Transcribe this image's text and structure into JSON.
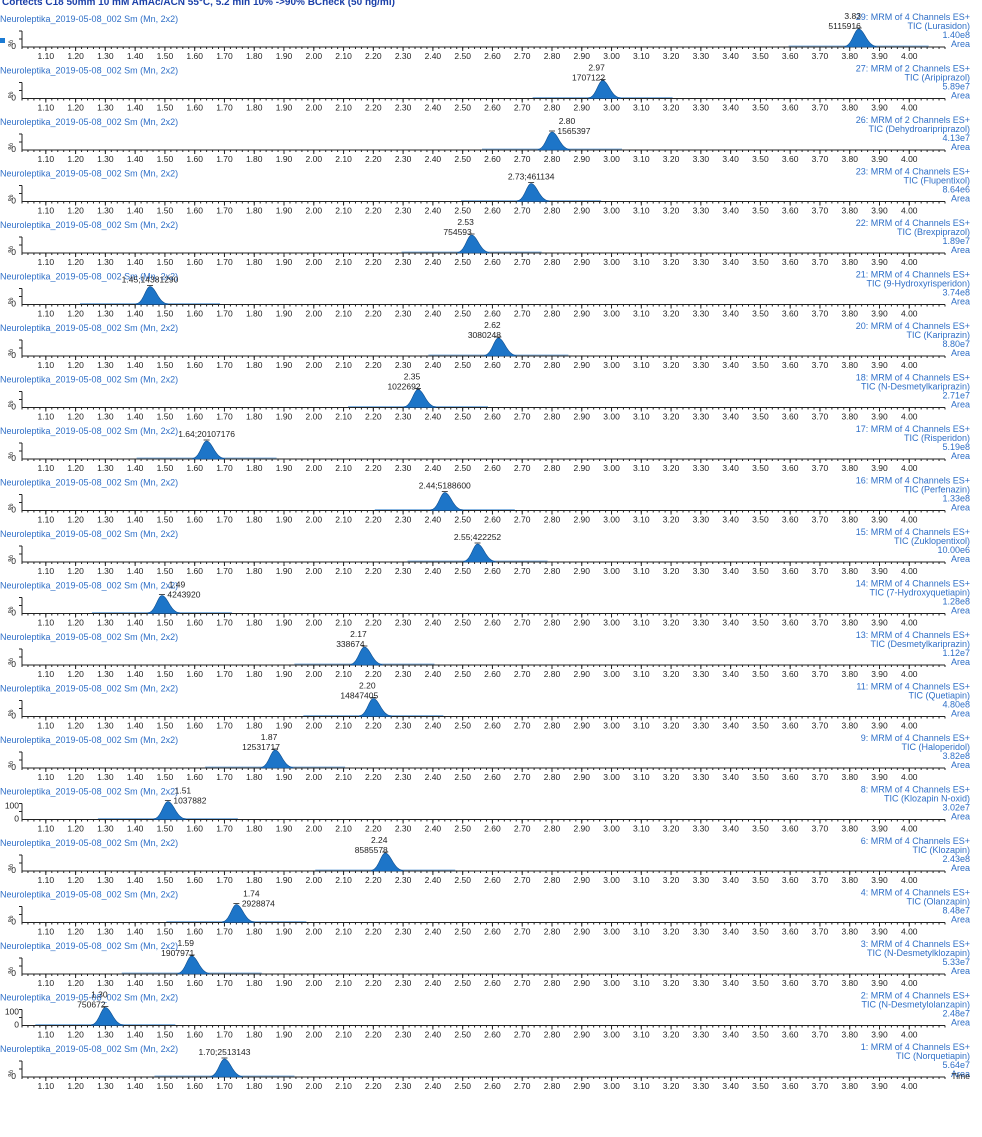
{
  "title": "Cortects C18 50mm 10 mM AmAc/ACN 55°C, 5.2 min 10% ->90% BCheck (50 ng/ml)",
  "colors": {
    "accent": "#2f6fc7",
    "peak": "#1d75c8",
    "axis": "#222222"
  },
  "chart_data": {
    "type": "line",
    "xlabel": "Time",
    "xlim": [
      1.02,
      4.12
    ],
    "x_ticks": [
      "1.10",
      "1.20",
      "1.30",
      "1.40",
      "1.50",
      "1.60",
      "1.70",
      "1.80",
      "1.90",
      "2.00",
      "2.10",
      "2.20",
      "2.30",
      "2.40",
      "2.50",
      "2.60",
      "2.70",
      "2.80",
      "2.90",
      "3.00",
      "3.10",
      "3.20",
      "3.30",
      "3.40",
      "3.50",
      "3.60",
      "3.70",
      "3.80",
      "3.90",
      "4.00"
    ],
    "series": [
      {
        "name": "Neuroleptika_2019-05-08_002 Sm (Mn, 2x2)",
        "channel": "29: MRM of 4 Channels ES+",
        "compound": "TIC (Lurasidon)",
        "intensity": "1.40e8",
        "area_label": "Area",
        "y_label": "%",
        "y_ticks": [
          "0"
        ],
        "peak_rt": 3.83,
        "peak_rt_label": "3.83",
        "peak_area": "5115916",
        "label_layout": "stacked"
      },
      {
        "name": "Neuroleptika_2019-05-08_002 Sm (Mn, 2x2)",
        "channel": "27: MRM of 2 Channels ES+",
        "compound": "TIC (Aripiprazol)",
        "intensity": "5.89e7",
        "area_label": "Area",
        "y_label": "%",
        "y_ticks": [
          "0"
        ],
        "peak_rt": 2.97,
        "peak_rt_label": "2.97",
        "peak_area": "1707122",
        "label_layout": "stacked"
      },
      {
        "name": "Neuroleptika_2019-05-08_002 Sm (Mn, 2x2)",
        "channel": "26: MRM of 2 Channels ES+",
        "compound": "TIC (Dehydroaripriprazol)",
        "intensity": "4.13e7",
        "area_label": "Area",
        "y_label": "%",
        "y_ticks": [
          "0"
        ],
        "peak_rt": 2.8,
        "peak_rt_label": "2.80",
        "peak_area": "1565397",
        "label_layout": "stacked-right"
      },
      {
        "name": "Neuroleptika_2019-05-08_002 Sm (Mn, 2x2)",
        "channel": "23: MRM of 4 Channels ES+",
        "compound": "TIC (Flupentixol)",
        "intensity": "8.64e6",
        "area_label": "Area",
        "y_label": "%",
        "y_ticks": [
          "0"
        ],
        "peak_rt": 2.73,
        "peak_rt_label": "2.73;461134",
        "peak_area": "",
        "label_layout": "inline"
      },
      {
        "name": "Neuroleptika_2019-05-08_002 Sm (Mn, 2x2)",
        "channel": "22: MRM of 4 Channels ES+",
        "compound": "TIC (Brexpiprazol)",
        "intensity": "1.89e7",
        "area_label": "Area",
        "y_label": "%",
        "y_ticks": [
          "0"
        ],
        "peak_rt": 2.53,
        "peak_rt_label": "2.53",
        "peak_area": "754593",
        "label_layout": "stacked"
      },
      {
        "name": "Neuroleptika_2019-05-08_002 Sm (Mn, 2x2)",
        "channel": "21: MRM of 4 Channels ES+",
        "compound": "TIC (9-Hydroxyrisperidon)",
        "intensity": "3.74e8",
        "area_label": "Area",
        "y_label": "%",
        "y_ticks": [
          "0"
        ],
        "peak_rt": 1.45,
        "peak_rt_label": "1.45;14381290",
        "peak_area": "",
        "label_layout": "inline"
      },
      {
        "name": "Neuroleptika_2019-05-08_002 Sm (Mn, 2x2)",
        "channel": "20: MRM of 4 Channels ES+",
        "compound": "TIC (Kariprazin)",
        "intensity": "8.80e7",
        "area_label": "Area",
        "y_label": "%",
        "y_ticks": [
          "0"
        ],
        "peak_rt": 2.62,
        "peak_rt_label": "2.62",
        "peak_area": "3080248",
        "label_layout": "stacked"
      },
      {
        "name": "Neuroleptika_2019-05-08_002 Sm (Mn, 2x2)",
        "channel": "18: MRM of 4 Channels ES+",
        "compound": "TIC (N-Desmetylkariprazin)",
        "intensity": "2.71e7",
        "area_label": "Area",
        "y_label": "%",
        "y_ticks": [
          "0"
        ],
        "peak_rt": 2.35,
        "peak_rt_label": "2.35",
        "peak_area": "1022692",
        "label_layout": "stacked"
      },
      {
        "name": "Neuroleptika_2019-05-08_002 Sm (Mn, 2x2)",
        "channel": "17: MRM of 4 Channels ES+",
        "compound": "TIC (Risperidon)",
        "intensity": "5.19e8",
        "area_label": "Area",
        "y_label": "%",
        "y_ticks": [
          "0"
        ],
        "peak_rt": 1.64,
        "peak_rt_label": "1.64;20107176",
        "peak_area": "",
        "label_layout": "inline"
      },
      {
        "name": "Neuroleptika_2019-05-08_002 Sm (Mn, 2x2)",
        "channel": "16: MRM of 4 Channels ES+",
        "compound": "TIC (Perfenazin)",
        "intensity": "1.33e8",
        "area_label": "Area",
        "y_label": "%",
        "y_ticks": [
          "0"
        ],
        "peak_rt": 2.44,
        "peak_rt_label": "2.44;5188600",
        "peak_area": "",
        "label_layout": "inline"
      },
      {
        "name": "Neuroleptika_2019-05-08_002 Sm (Mn, 2x2)",
        "channel": "15: MRM of 4 Channels ES+",
        "compound": "TIC (Zuklopentixol)",
        "intensity": "10.00e6",
        "area_label": "Area",
        "y_label": "%",
        "y_ticks": [
          "0"
        ],
        "peak_rt": 2.55,
        "peak_rt_label": "2.55;422252",
        "peak_area": "",
        "label_layout": "inline"
      },
      {
        "name": "Neuroleptika_2019-05-08_002 Sm (Mn, 2x2)",
        "channel": "14: MRM of 4 Channels ES+",
        "compound": "TIC (7-Hydroxyquetiapin)",
        "intensity": "1.28e8",
        "area_label": "Area",
        "y_label": "%",
        "y_ticks": [
          "0"
        ],
        "peak_rt": 1.49,
        "peak_rt_label": "1.49",
        "peak_area": "4243920",
        "label_layout": "stacked-right"
      },
      {
        "name": "Neuroleptika_2019-05-08_002 Sm (Mn, 2x2)",
        "channel": "13: MRM of 4 Channels ES+",
        "compound": "TIC (Desmetylkariprazin)",
        "intensity": "1.12e7",
        "area_label": "Area",
        "y_label": "%",
        "y_ticks": [
          "0"
        ],
        "peak_rt": 2.17,
        "peak_rt_label": "2.17",
        "peak_area": "338674",
        "label_layout": "stacked"
      },
      {
        "name": "Neuroleptika_2019-05-08_002 Sm (Mn, 2x2)",
        "channel": "11: MRM of 4 Channels ES+",
        "compound": "TIC (Quetiapin)",
        "intensity": "4.80e8",
        "area_label": "Area",
        "y_label": "%",
        "y_ticks": [
          "0"
        ],
        "peak_rt": 2.2,
        "peak_rt_label": "2.20",
        "peak_area": "14847405",
        "label_layout": "stacked"
      },
      {
        "name": "Neuroleptika_2019-05-08_002 Sm (Mn, 2x2)",
        "channel": "9: MRM of 4 Channels ES+",
        "compound": "TIC (Haloperidol)",
        "intensity": "3.82e8",
        "area_label": "Area",
        "y_label": "%",
        "y_ticks": [
          "0"
        ],
        "peak_rt": 1.87,
        "peak_rt_label": "1.87",
        "peak_area": "12531717",
        "label_layout": "stacked"
      },
      {
        "name": "Neuroleptika_2019-05-08_002 Sm (Mn, 2x2)",
        "channel": "8: MRM of 4 Channels ES+",
        "compound": "TIC (Klozapin N-oxid)",
        "intensity": "3.02e7",
        "area_label": "Area",
        "y_label": "",
        "y_ticks": [
          "100",
          "0"
        ],
        "peak_rt": 1.51,
        "peak_rt_label": "1.51",
        "peak_area": "1037882",
        "label_layout": "stacked-right"
      },
      {
        "name": "Neuroleptika_2019-05-08_002 Sm (Mn, 2x2)",
        "channel": "6: MRM of 4 Channels ES+",
        "compound": "TIC (Klozapin)",
        "intensity": "2.43e8",
        "area_label": "Area",
        "y_label": "%",
        "y_ticks": [
          "0"
        ],
        "peak_rt": 2.24,
        "peak_rt_label": "2.24",
        "peak_area": "8585578",
        "label_layout": "stacked"
      },
      {
        "name": "Neuroleptika_2019-05-08_002 Sm (Mn, 2x2)",
        "channel": "4: MRM of 4 Channels ES+",
        "compound": "TIC (Olanzapin)",
        "intensity": "8.48e7",
        "area_label": "Area",
        "y_label": "%",
        "y_ticks": [
          "0"
        ],
        "peak_rt": 1.74,
        "peak_rt_label": "1.74",
        "peak_area": "2928874",
        "label_layout": "stacked-right"
      },
      {
        "name": "Neuroleptika_2019-05-08_002 Sm (Mn, 2x2)",
        "channel": "3: MRM of 4 Channels ES+",
        "compound": "TIC (N-Desmetylklozapin)",
        "intensity": "5.33e7",
        "area_label": "Area",
        "y_label": "%",
        "y_ticks": [
          "0"
        ],
        "peak_rt": 1.59,
        "peak_rt_label": "1.59",
        "peak_area": "1907971",
        "label_layout": "stacked"
      },
      {
        "name": "Neuroleptika_2019-05-08_002 Sm (Mn, 2x2)",
        "channel": "2: MRM of 4 Channels ES+",
        "compound": "TIC (N-Desmetylolanzapin)",
        "intensity": "2.48e7",
        "area_label": "Area",
        "y_label": "",
        "y_ticks": [
          "100",
          "0"
        ],
        "peak_rt": 1.3,
        "peak_rt_label": "1.30",
        "peak_area": "750672",
        "label_layout": "stacked"
      },
      {
        "name": "Neuroleptika_2019-05-08_002 Sm (Mn, 2x2)",
        "channel": "1: MRM of 4 Channels ES+",
        "compound": "TIC (Norquetiapin)",
        "intensity": "5.64e7",
        "area_label": "Area",
        "y_label": "%",
        "y_ticks": [
          "0"
        ],
        "peak_rt": 1.7,
        "peak_rt_label": "1.70;2513143",
        "peak_area": "",
        "label_layout": "inline"
      }
    ],
    "final_axis_label": "Time"
  }
}
